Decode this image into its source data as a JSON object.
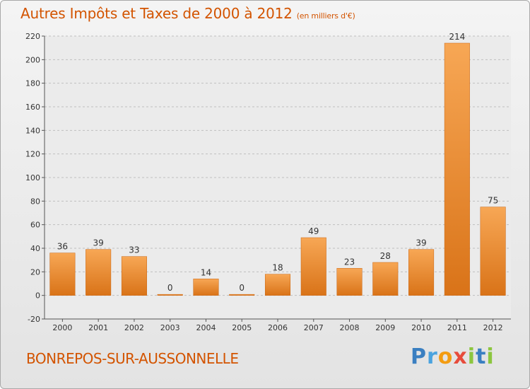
{
  "header": {
    "title": "Autres Impôts et Taxes de 2000 à 2012",
    "unit": "(en milliers d'€)"
  },
  "footer": {
    "commune": "BONREPOS-SUR-AUSSONNELLE",
    "logo_letters": [
      {
        "char": "P",
        "color": "#3a7fc1"
      },
      {
        "char": "r",
        "color": "#4aa3df"
      },
      {
        "char": "o",
        "color": "#f39c12"
      },
      {
        "char": "x",
        "color": "#e74c3c"
      },
      {
        "char": "i",
        "color": "#8cc63f"
      },
      {
        "char": "t",
        "color": "#3a7fc1"
      },
      {
        "char": "i",
        "color": "#8cc63f"
      }
    ]
  },
  "colors": {
    "bar_top": "#f7a755",
    "bar_bottom": "#d97318",
    "accent": "#d35400",
    "grid": "#bfbfbf"
  },
  "chart_data": {
    "type": "bar",
    "title": "Autres Impôts et Taxes de 2000 à 2012",
    "subtitle": "(en milliers d'€)",
    "categories": [
      "2000",
      "2001",
      "2002",
      "2003",
      "2004",
      "2005",
      "2006",
      "2007",
      "2008",
      "2009",
      "2010",
      "2011",
      "2012"
    ],
    "values": [
      36,
      39,
      33,
      0,
      14,
      0,
      18,
      49,
      23,
      28,
      39,
      214,
      75
    ],
    "ylim": [
      -20,
      220
    ],
    "yticks": [
      -20,
      0,
      20,
      40,
      60,
      80,
      100,
      120,
      140,
      160,
      180,
      200,
      220
    ],
    "grid": true,
    "grid_style": "dashed-horizontal"
  }
}
